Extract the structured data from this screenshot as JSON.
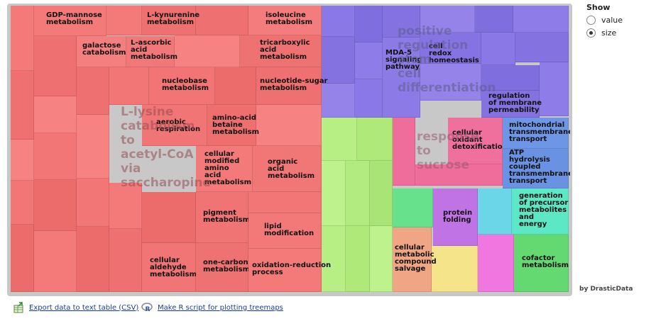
{
  "show": {
    "title": "Show",
    "options": [
      {
        "label": "value",
        "selected": false
      },
      {
        "label": "size",
        "selected": true
      }
    ]
  },
  "credit": "by DrasticData",
  "links": {
    "export": "Export data to text table (CSV)",
    "rscript": "Make R script for plotting treemaps"
  },
  "icons": {
    "export": "spreadsheet-export-icon",
    "rscript": "r-logo-icon"
  },
  "colors": {
    "red": "#f57c7c",
    "purple": "#8f7ce8",
    "green": "#b5ee82",
    "pink": "#ef6f9d",
    "blue": "#6d97e6",
    "teal": "#5ce8c5"
  },
  "groups": [
    {
      "label": "L-lysine catabolic process to acetyl-CoA via saccharopine",
      "lines": [
        "L-lysine",
        "catabolism",
        "to",
        "acetyl-CoA",
        "via",
        "saccharopine"
      ]
    },
    {
      "label": "positive regulation of stem cell differentiation",
      "lines": [
        "positive",
        "regulation",
        "stem",
        "cell",
        "differentiation"
      ]
    },
    {
      "label": "response to sucrose",
      "lines": [
        "response",
        "to",
        "sucrose"
      ]
    }
  ],
  "tiles": [
    {
      "label": "GDP-mannose metabolism",
      "lines": [
        "GDP-mannose",
        "metabolism"
      ]
    },
    {
      "label": "L-kynurenine metabolism",
      "lines": [
        "L-kynurenine",
        "metabolism"
      ]
    },
    {
      "label": "isoleucine metabolism",
      "lines": [
        "isoleucine",
        "metabolism"
      ]
    },
    {
      "label": "galactose catabolism",
      "lines": [
        "galactose",
        "catabolism"
      ]
    },
    {
      "label": "L-ascorbic acid metabolism",
      "lines": [
        "L-ascorbic",
        "acid",
        "metabolism"
      ]
    },
    {
      "label": "tricarboxylic acid metabolism",
      "lines": [
        "tricarboxylic",
        "acid",
        "metabolism"
      ]
    },
    {
      "label": "nucleobase metabolism",
      "lines": [
        "nucleobase",
        "metabolism"
      ]
    },
    {
      "label": "nucleotide-sugar metabolism",
      "lines": [
        "nucleotide-sugar",
        "metabolism"
      ]
    },
    {
      "label": "aerobic respiration",
      "lines": [
        "aerobic",
        "respiration"
      ]
    },
    {
      "label": "amino-acid betaine metabolism",
      "lines": [
        "amino-acid",
        "betaine",
        "metabolism"
      ]
    },
    {
      "label": "cellular modified amino acid metabolism",
      "lines": [
        "cellular",
        "modified",
        "amino",
        "acid",
        "metabolism"
      ]
    },
    {
      "label": "organic acid metabolism",
      "lines": [
        "organic",
        "acid",
        "metabolism"
      ]
    },
    {
      "label": "pigment metabolism",
      "lines": [
        "pigment",
        "metabolism"
      ]
    },
    {
      "label": "lipid modification",
      "lines": [
        "lipid",
        "modification"
      ]
    },
    {
      "label": "cellular aldehyde metabolism",
      "lines": [
        "cellular",
        "aldehyde",
        "metabolism"
      ]
    },
    {
      "label": "one-carbon metabolism",
      "lines": [
        "one-carbon",
        "metabolism"
      ]
    },
    {
      "label": "oxidation-reduction process",
      "lines": [
        "oxidation-reduction",
        "process"
      ]
    },
    {
      "label": "MDA-5 signaling pathway",
      "lines": [
        "MDA-5",
        "signaling",
        "pathway"
      ]
    },
    {
      "label": "cell redox homeostasis",
      "lines": [
        "cell",
        "redox",
        "homeostasis"
      ]
    },
    {
      "label": "regulation of membrane permeability",
      "lines": [
        "regulation",
        "of membrane",
        "permeability"
      ]
    },
    {
      "label": "cellular oxidant detoxification",
      "lines": [
        "cellular",
        "oxidant",
        "detoxification"
      ]
    },
    {
      "label": "mitochondrial transmembrane transport",
      "lines": [
        "mitochondrial",
        "transmembrane",
        "transport"
      ]
    },
    {
      "label": "ATP hydrolysis coupled transmembrane transport",
      "lines": [
        "ATP",
        "hydrolysis",
        "coupled",
        "transmembrane",
        "transport"
      ]
    },
    {
      "label": "protein folding",
      "lines": [
        "protein",
        "folding"
      ]
    },
    {
      "label": "generation of precursor metabolites and energy",
      "lines": [
        "generation",
        "of precursor",
        "metabolites",
        "and",
        "energy"
      ]
    },
    {
      "label": "cellular metabolic compound salvage",
      "lines": [
        "cellular",
        "metabolic",
        "compound",
        "salvage"
      ]
    },
    {
      "label": "cofactor metabolism",
      "lines": [
        "cofactor",
        "metabolism"
      ]
    }
  ]
}
